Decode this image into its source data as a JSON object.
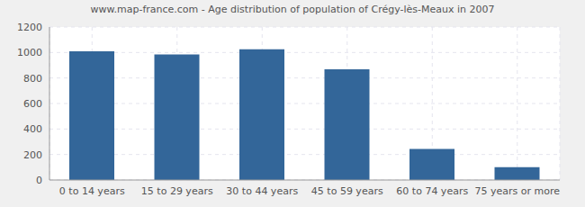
{
  "chart_data": {
    "type": "bar",
    "title": "www.map-france.com - Age distribution of population of Crégy-lès-Meaux in 2007",
    "categories": [
      "0 to 14 years",
      "15 to 29 years",
      "30 to 44 years",
      "45 to 59 years",
      "60 to 74 years",
      "75 years or more"
    ],
    "values": [
      1010,
      985,
      1025,
      868,
      243,
      100
    ],
    "color": "#336699",
    "ylim": [
      0,
      1200
    ],
    "yticks": [
      0,
      200,
      400,
      600,
      800,
      1000,
      1200
    ],
    "grid": true
  }
}
